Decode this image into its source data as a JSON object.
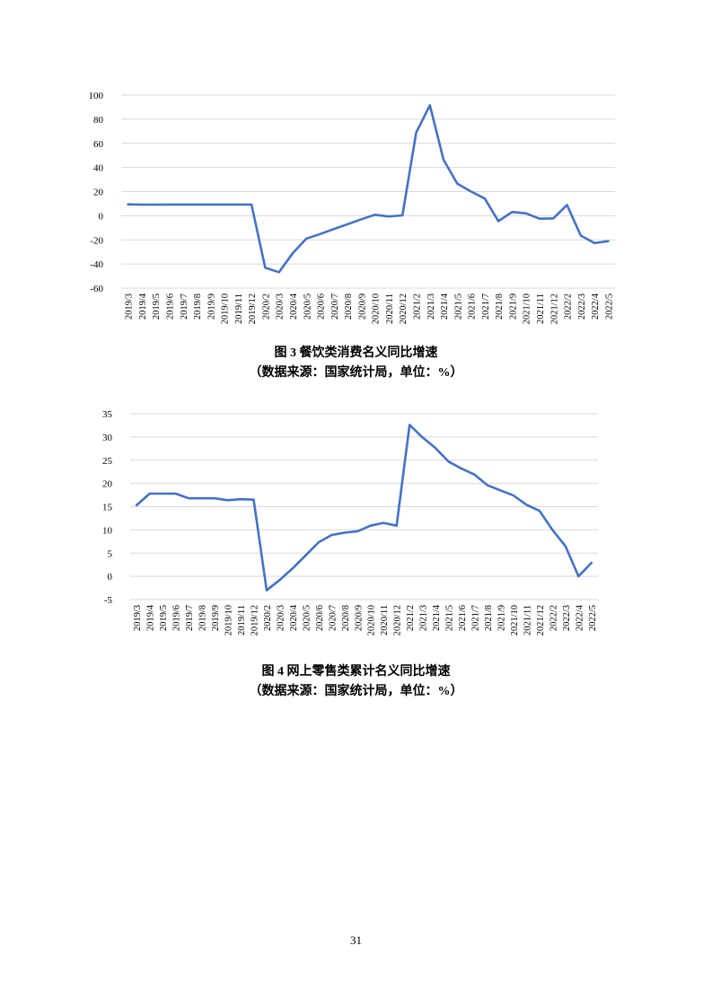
{
  "chart_data": [
    {
      "type": "line",
      "title": "",
      "xlabel": "",
      "ylabel": "",
      "ylim": [
        -60,
        100
      ],
      "yticks": [
        -60,
        -40,
        -20,
        0,
        20,
        40,
        60,
        80,
        100
      ],
      "grid": true,
      "legend": "none",
      "line_color": "#4472C4",
      "categories": [
        "2019/3",
        "2019/4",
        "2019/5",
        "2019/6",
        "2019/7",
        "2019/8",
        "2019/9",
        "2019/10",
        "2019/11",
        "2019/12",
        "2020/2",
        "2020/3",
        "2020/4",
        "2020/5",
        "2020/6",
        "2020/7",
        "2020/8",
        "2020/9",
        "2020/10",
        "2020/11",
        "2020/12",
        "2021/2",
        "2021/3",
        "2021/4",
        "2021/5",
        "2021/6",
        "2021/7",
        "2021/8",
        "2021/9",
        "2021/10",
        "2021/11",
        "2021/12",
        "2022/2",
        "2022/3",
        "2022/4",
        "2022/5"
      ],
      "series": [
        {
          "values": [
            9.4,
            9.2,
            9.2,
            9.3,
            9.3,
            9.3,
            9.3,
            9.3,
            9.3,
            9.3,
            -43.1,
            -46.8,
            -31.1,
            -18.9,
            -15.2,
            -11.0,
            -7.0,
            -2.9,
            0.8,
            -0.6,
            0.3,
            68.9,
            91.6,
            46.4,
            26.6,
            20.1,
            14.3,
            -4.5,
            3.1,
            2.0,
            -2.5,
            -2.2,
            8.9,
            -16.4,
            -22.7,
            -21.1
          ]
        }
      ]
    },
    {
      "type": "line",
      "title": "",
      "xlabel": "",
      "ylabel": "",
      "ylim": [
        -5,
        35
      ],
      "yticks": [
        -5,
        0,
        5,
        10,
        15,
        20,
        25,
        30,
        35
      ],
      "grid": true,
      "legend": "none",
      "line_color": "#4472C4",
      "categories": [
        "2019/3",
        "2019/4",
        "2019/5",
        "2019/6",
        "2019/7",
        "2019/8",
        "2019/9",
        "2019/10",
        "2019/11",
        "2019/12",
        "2020/2",
        "2020/3",
        "2020/4",
        "2020/5",
        "2020/6",
        "2020/7",
        "2020/8",
        "2020/9",
        "2020/10",
        "2020/11",
        "2020/12",
        "2021/2",
        "2021/3",
        "2021/4",
        "2021/5",
        "2021/6",
        "2021/7",
        "2021/8",
        "2021/9",
        "2021/10",
        "2021/11",
        "2021/12",
        "2022/2",
        "2022/3",
        "2022/4",
        "2022/5"
      ],
      "series": [
        {
          "values": [
            15.3,
            17.8,
            17.8,
            17.8,
            16.8,
            16.8,
            16.8,
            16.4,
            16.6,
            16.5,
            -3.0,
            -0.8,
            1.7,
            4.5,
            7.3,
            8.9,
            9.4,
            9.7,
            10.9,
            11.5,
            10.9,
            32.6,
            29.9,
            27.6,
            24.7,
            23.2,
            21.9,
            19.6,
            18.5,
            17.4,
            15.4,
            14.1,
            10.0,
            6.5,
            0.0,
            2.9
          ]
        }
      ]
    }
  ],
  "captions": {
    "fig3_line1": "图 3 餐饮类消费名义同比增速",
    "fig3_line2": "（数据来源：国家统计局，单位：%）",
    "fig4_line1": "图 4 网上零售类累计名义同比增速",
    "fig4_line2": "（数据来源：国家统计局，单位：%）"
  },
  "page_number": "31"
}
